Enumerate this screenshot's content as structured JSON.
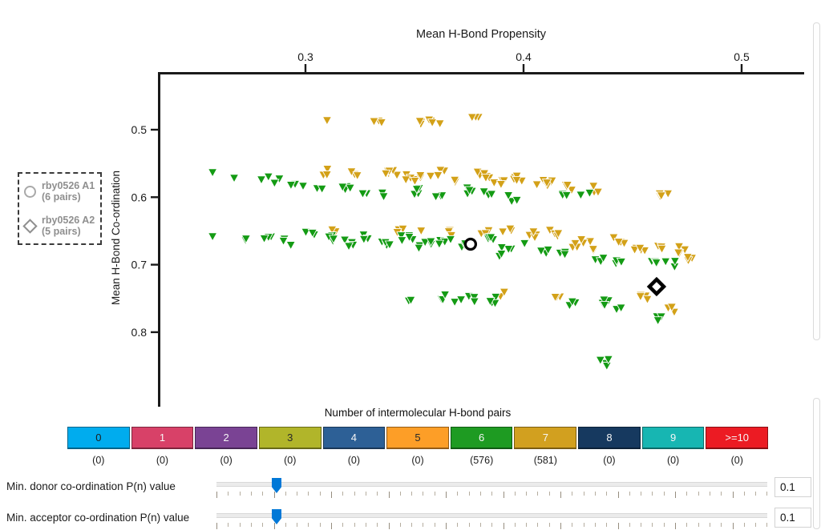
{
  "colors": {
    "accent_slider_handle": "#0078D7",
    "axis": "#1a1a1a",
    "legend_text": "#8f8f8f",
    "marker_green": "#149B14",
    "marker_gold": "#D3A118"
  },
  "legend": {
    "items": [
      {
        "marker": "circle",
        "line1": "rby0526 A1",
        "line2": "(6 pairs)"
      },
      {
        "marker": "diamond",
        "line1": "rby0526 A2",
        "line2": "(5 pairs)"
      }
    ]
  },
  "chart_data": {
    "type": "scatter",
    "xlabel": "Mean H-Bond Propensity",
    "ylabel": "Mean H-Bond Co-ordination",
    "x_ticks": [
      0.3,
      0.4,
      0.5
    ],
    "y_ticks": [
      0.5,
      0.6,
      0.7,
      0.8
    ],
    "xlim": [
      0.233,
      0.529
    ],
    "ylim": [
      0.418,
      0.907
    ],
    "y_axis_increases_downward": true,
    "grid": false,
    "legend_position": "left-outside",
    "series": [
      {
        "name": "7 H-bond pairs",
        "marker": "triangle-down",
        "color": "#D3A118",
        "total_points_reported": 581,
        "clusters": [
          [
            0.3099,
            0.4858,
            1
          ],
          [
            0.3331,
            0.487,
            3
          ],
          [
            0.3548,
            0.487,
            5
          ],
          [
            0.3607,
            0.4893,
            2
          ],
          [
            0.3776,
            0.4858,
            3
          ],
          [
            0.3099,
            0.5629,
            4
          ],
          [
            0.3235,
            0.5664,
            3
          ],
          [
            0.3401,
            0.5629,
            6
          ],
          [
            0.3493,
            0.5712,
            8
          ],
          [
            0.3603,
            0.5629,
            5
          ],
          [
            0.3695,
            0.5747,
            4
          ],
          [
            0.3805,
            0.5664,
            6
          ],
          [
            0.3886,
            0.5783,
            4
          ],
          [
            0.3982,
            0.5712,
            5
          ],
          [
            0.4099,
            0.5783,
            6
          ],
          [
            0.421,
            0.5866,
            4
          ],
          [
            0.4338,
            0.5866,
            3
          ],
          [
            0.4632,
            0.5961,
            6
          ],
          [
            0.3136,
            0.6495,
            2
          ],
          [
            0.3438,
            0.6495,
            3
          ],
          [
            0.354,
            0.6542,
            2
          ],
          [
            0.3658,
            0.6518,
            3
          ],
          [
            0.3824,
            0.6495,
            3
          ],
          [
            0.3923,
            0.6495,
            3
          ],
          [
            0.4033,
            0.6554,
            4
          ],
          [
            0.4143,
            0.6518,
            4
          ],
          [
            0.4228,
            0.6696,
            4
          ],
          [
            0.4283,
            0.6637,
            3
          ],
          [
            0.4438,
            0.6637,
            4
          ],
          [
            0.4338,
            0.6815,
            2
          ],
          [
            0.4533,
            0.6756,
            5
          ],
          [
            0.4632,
            0.6756,
            5
          ],
          [
            0.4732,
            0.6779,
            4
          ],
          [
            0.4776,
            0.6898,
            3
          ],
          [
            0.3908,
            0.7444,
            2
          ],
          [
            0.4143,
            0.7444,
            3
          ],
          [
            0.4559,
            0.7491,
            4
          ],
          [
            0.4688,
            0.7646,
            3
          ]
        ]
      },
      {
        "name": "6 H-bond pairs",
        "marker": "triangle-down",
        "color": "#149B14",
        "total_points_reported": 576,
        "clusters": [
          [
            0.2574,
            0.5629,
            1
          ],
          [
            0.2673,
            0.5712,
            1
          ],
          [
            0.2813,
            0.5688,
            2
          ],
          [
            0.2857,
            0.5747,
            2
          ],
          [
            0.293,
            0.5783,
            2
          ],
          [
            0.2989,
            0.583,
            1
          ],
          [
            0.3063,
            0.5866,
            2
          ],
          [
            0.318,
            0.583,
            4
          ],
          [
            0.3272,
            0.5901,
            3
          ],
          [
            0.3357,
            0.5949,
            2
          ],
          [
            0.3511,
            0.5901,
            4
          ],
          [
            0.3614,
            0.5949,
            3
          ],
          [
            0.3743,
            0.5901,
            4
          ],
          [
            0.3842,
            0.5949,
            3
          ],
          [
            0.3952,
            0.602,
            4
          ],
          [
            0.4191,
            0.5925,
            3
          ],
          [
            0.4283,
            0.5949,
            2
          ],
          [
            0.2574,
            0.6578,
            1
          ],
          [
            0.2739,
            0.6637,
            2
          ],
          [
            0.2831,
            0.6578,
            3
          ],
          [
            0.2923,
            0.6661,
            3
          ],
          [
            0.3015,
            0.6542,
            3
          ],
          [
            0.3114,
            0.6613,
            4
          ],
          [
            0.3199,
            0.6673,
            4
          ],
          [
            0.3283,
            0.659,
            3
          ],
          [
            0.3364,
            0.6696,
            4
          ],
          [
            0.3456,
            0.6613,
            5
          ],
          [
            0.3548,
            0.6696,
            5
          ],
          [
            0.364,
            0.6637,
            5
          ],
          [
            0.3732,
            0.6732,
            4
          ],
          [
            0.3842,
            0.6637,
            4
          ],
          [
            0.3923,
            0.6732,
            3
          ],
          [
            0.4007,
            0.6673,
            3
          ],
          [
            0.3915,
            0.685,
            3
          ],
          [
            0.4092,
            0.6779,
            3
          ],
          [
            0.4191,
            0.6815,
            3
          ],
          [
            0.4349,
            0.6898,
            3
          ],
          [
            0.4449,
            0.6934,
            3
          ],
          [
            0.4585,
            0.6934,
            4
          ],
          [
            0.4669,
            0.6993,
            3
          ],
          [
            0.3474,
            0.7491,
            2
          ],
          [
            0.3632,
            0.7467,
            3
          ],
          [
            0.3702,
            0.7562,
            2
          ],
          [
            0.3768,
            0.7491,
            3
          ],
          [
            0.386,
            0.7527,
            4
          ],
          [
            0.4217,
            0.7562,
            3
          ],
          [
            0.4364,
            0.7562,
            4
          ],
          [
            0.443,
            0.7646,
            2
          ],
          [
            0.4607,
            0.78,
            3
          ],
          [
            0.4375,
            0.8452,
            4
          ]
        ]
      }
    ],
    "highlighted_structures": [
      {
        "label": "rby0526 A1",
        "marker": "circle",
        "x": 0.3757,
        "y": 0.6696
      },
      {
        "label": "rby0526 A2",
        "marker": "diamond",
        "x": 0.461,
        "y": 0.7325
      }
    ]
  },
  "colorbar": {
    "title": "Number of intermolecular H-bond pairs",
    "cells": [
      {
        "label": "0",
        "count": "(0)",
        "color": "#00ACEE",
        "text_color": "#1c1c1c"
      },
      {
        "label": "1",
        "count": "(0)",
        "color": "#D84168",
        "text_color": "#f6f6f6"
      },
      {
        "label": "2",
        "count": "(0)",
        "color": "#7A4394",
        "text_color": "#f6f6f6"
      },
      {
        "label": "3",
        "count": "(0)",
        "color": "#B1B52A",
        "text_color": "#2a2a2a"
      },
      {
        "label": "4",
        "count": "(0)",
        "color": "#2D6096",
        "text_color": "#f6f6f6"
      },
      {
        "label": "5",
        "count": "(0)",
        "color": "#FD9E27",
        "text_color": "#2a2a2a"
      },
      {
        "label": "6",
        "count": "(576)",
        "color": "#1E9B22",
        "text_color": "#f6f6f6"
      },
      {
        "label": "7",
        "count": "(581)",
        "color": "#D2A01F",
        "text_color": "#f6f6f6"
      },
      {
        "label": "8",
        "count": "(0)",
        "color": "#16395F",
        "text_color": "#f6f6f6"
      },
      {
        "label": "9",
        "count": "(0)",
        "color": "#17B6B2",
        "text_color": "#f6f6f6"
      },
      {
        "label": ">=10",
        "count": "(0)",
        "color": "#EC1B23",
        "text_color": "#f6f6f6"
      }
    ]
  },
  "sliders": [
    {
      "label": "Min. donor co-ordination P(n) value",
      "value": "0.1"
    },
    {
      "label": "Min. acceptor co-ordination P(n) value",
      "value": "0.1"
    }
  ]
}
